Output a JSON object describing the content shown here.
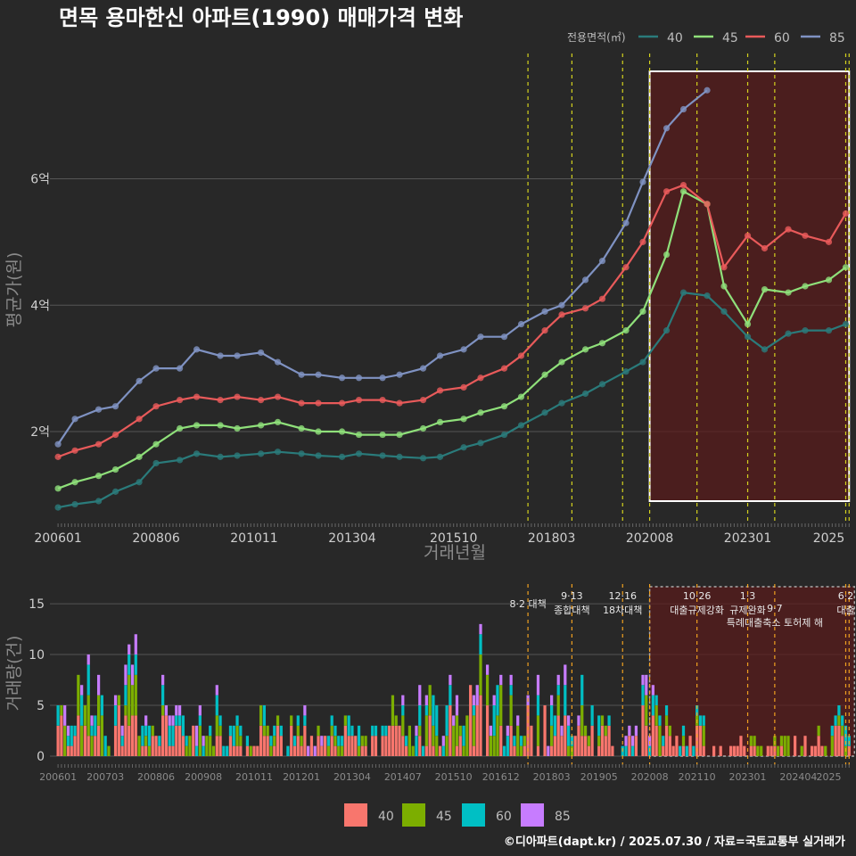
{
  "title": "면목 용마한신 아파트(1990) 매매가격 변화",
  "credit": "©디아파트(dapt.kr) / 2025.07.30 / 자료=국토교통부 실거래가",
  "colors": {
    "price": {
      "40": "#2a7b7b",
      "45": "#8fe07a",
      "60": "#e85a5a",
      "85": "#7f92c2"
    },
    "volume": {
      "40": "#f8766d",
      "45": "#7cae00",
      "60": "#00bfc4",
      "85": "#c77cff"
    },
    "vline": "#d4d21e",
    "vline2": "#f0a020",
    "highlight": "#5a1a1a"
  },
  "chart_data": [
    {
      "type": "line",
      "title": "면목 용마한신 아파트(1990) 매매가격 변화",
      "xlabel": "거래년월",
      "ylabel": "평균가(원)",
      "legend_title": "전용면적(㎡)",
      "legend_position": "top-right",
      "x_ticks": [
        "200601",
        "200806",
        "201011",
        "201304",
        "201510",
        "201803",
        "202008",
        "202301",
        "2025"
      ],
      "y_ticks": [
        "2억",
        "4억",
        "6억"
      ],
      "ylim": [
        0.9,
        7.7
      ],
      "grid": true,
      "policy_lines": [
        "2017.08",
        "2018.09",
        "2019.12",
        "2020.08",
        "2021.10",
        "2023.01",
        "2023.09",
        "2025.06",
        "2025.07"
      ],
      "highlight": [
        "2020.08",
        "2025.07"
      ],
      "series": [
        {
          "name": "40",
          "points": [
            [
              "2006.01",
              0.8
            ],
            [
              "2006.06",
              0.85
            ],
            [
              "2007.01",
              0.9
            ],
            [
              "2007.06",
              1.05
            ],
            [
              "2008.01",
              1.2
            ],
            [
              "2008.06",
              1.5
            ],
            [
              "2009.01",
              1.55
            ],
            [
              "2009.06",
              1.65
            ],
            [
              "2010.01",
              1.6
            ],
            [
              "2010.06",
              1.62
            ],
            [
              "2011.01",
              1.65
            ],
            [
              "2011.06",
              1.68
            ],
            [
              "2012.01",
              1.65
            ],
            [
              "2012.06",
              1.62
            ],
            [
              "2013.01",
              1.6
            ],
            [
              "2013.06",
              1.65
            ],
            [
              "2014.01",
              1.62
            ],
            [
              "2014.06",
              1.6
            ],
            [
              "2015.01",
              1.58
            ],
            [
              "2015.06",
              1.6
            ],
            [
              "2016.01",
              1.75
            ],
            [
              "2016.06",
              1.82
            ],
            [
              "2017.01",
              1.95
            ],
            [
              "2017.06",
              2.1
            ],
            [
              "2018.01",
              2.3
            ],
            [
              "2018.06",
              2.45
            ],
            [
              "2019.01",
              2.6
            ],
            [
              "2019.06",
              2.75
            ],
            [
              "2020.01",
              2.95
            ],
            [
              "2020.06",
              3.1
            ],
            [
              "2021.01",
              3.6
            ],
            [
              "2021.06",
              4.2
            ],
            [
              "2022.01",
              4.15
            ],
            [
              "2022.06",
              3.9
            ],
            [
              "2023.01",
              3.5
            ],
            [
              "2023.06",
              3.3
            ],
            [
              "2024.01",
              3.55
            ],
            [
              "2024.06",
              3.6
            ],
            [
              "2025.01",
              3.6
            ],
            [
              "2025.06",
              3.7
            ]
          ]
        },
        {
          "name": "45",
          "points": [
            [
              "2006.01",
              1.1
            ],
            [
              "2006.06",
              1.2
            ],
            [
              "2007.01",
              1.3
            ],
            [
              "2007.06",
              1.4
            ],
            [
              "2008.01",
              1.6
            ],
            [
              "2008.06",
              1.8
            ],
            [
              "2009.01",
              2.05
            ],
            [
              "2009.06",
              2.1
            ],
            [
              "2010.01",
              2.1
            ],
            [
              "2010.06",
              2.05
            ],
            [
              "2011.01",
              2.1
            ],
            [
              "2011.06",
              2.15
            ],
            [
              "2012.01",
              2.05
            ],
            [
              "2012.06",
              2.0
            ],
            [
              "2013.01",
              2.0
            ],
            [
              "2013.06",
              1.95
            ],
            [
              "2014.01",
              1.95
            ],
            [
              "2014.06",
              1.95
            ],
            [
              "2015.01",
              2.05
            ],
            [
              "2015.06",
              2.15
            ],
            [
              "2016.01",
              2.2
            ],
            [
              "2016.06",
              2.3
            ],
            [
              "2017.01",
              2.4
            ],
            [
              "2017.06",
              2.55
            ],
            [
              "2018.01",
              2.9
            ],
            [
              "2018.06",
              3.1
            ],
            [
              "2019.01",
              3.3
            ],
            [
              "2019.06",
              3.4
            ],
            [
              "2020.01",
              3.6
            ],
            [
              "2020.06",
              3.9
            ],
            [
              "2021.01",
              4.8
            ],
            [
              "2021.06",
              5.8
            ],
            [
              "2022.01",
              5.6
            ],
            [
              "2022.06",
              4.3
            ],
            [
              "2023.01",
              3.7
            ],
            [
              "2023.06",
              4.25
            ],
            [
              "2024.01",
              4.2
            ],
            [
              "2024.06",
              4.3
            ],
            [
              "2025.01",
              4.4
            ],
            [
              "2025.06",
              4.6
            ]
          ]
        },
        {
          "name": "60",
          "points": [
            [
              "2006.01",
              1.6
            ],
            [
              "2006.06",
              1.7
            ],
            [
              "2007.01",
              1.8
            ],
            [
              "2007.06",
              1.95
            ],
            [
              "2008.01",
              2.2
            ],
            [
              "2008.06",
              2.4
            ],
            [
              "2009.01",
              2.5
            ],
            [
              "2009.06",
              2.55
            ],
            [
              "2010.01",
              2.5
            ],
            [
              "2010.06",
              2.55
            ],
            [
              "2011.01",
              2.5
            ],
            [
              "2011.06",
              2.55
            ],
            [
              "2012.01",
              2.45
            ],
            [
              "2012.06",
              2.45
            ],
            [
              "2013.01",
              2.45
            ],
            [
              "2013.06",
              2.5
            ],
            [
              "2014.01",
              2.5
            ],
            [
              "2014.06",
              2.45
            ],
            [
              "2015.01",
              2.5
            ],
            [
              "2015.06",
              2.65
            ],
            [
              "2016.01",
              2.7
            ],
            [
              "2016.06",
              2.85
            ],
            [
              "2017.01",
              3.0
            ],
            [
              "2017.06",
              3.2
            ],
            [
              "2018.01",
              3.6
            ],
            [
              "2018.06",
              3.85
            ],
            [
              "2019.01",
              3.95
            ],
            [
              "2019.06",
              4.1
            ],
            [
              "2020.01",
              4.6
            ],
            [
              "2020.06",
              5.0
            ],
            [
              "2021.01",
              5.8
            ],
            [
              "2021.06",
              5.9
            ],
            [
              "2022.01",
              5.6
            ],
            [
              "2022.06",
              4.6
            ],
            [
              "2023.01",
              5.1
            ],
            [
              "2023.06",
              4.9
            ],
            [
              "2024.01",
              5.2
            ],
            [
              "2024.06",
              5.1
            ],
            [
              "2025.01",
              5.0
            ],
            [
              "2025.06",
              5.45
            ]
          ]
        },
        {
          "name": "85",
          "points": [
            [
              "2006.01",
              1.8
            ],
            [
              "2006.06",
              2.2
            ],
            [
              "2007.01",
              2.35
            ],
            [
              "2007.06",
              2.4
            ],
            [
              "2008.01",
              2.8
            ],
            [
              "2008.06",
              3.0
            ],
            [
              "2009.01",
              3.0
            ],
            [
              "2009.06",
              3.3
            ],
            [
              "2010.01",
              3.2
            ],
            [
              "2010.06",
              3.2
            ],
            [
              "2011.01",
              3.25
            ],
            [
              "2011.06",
              3.1
            ],
            [
              "2012.01",
              2.9
            ],
            [
              "2012.06",
              2.9
            ],
            [
              "2013.01",
              2.85
            ],
            [
              "2013.06",
              2.85
            ],
            [
              "2014.01",
              2.85
            ],
            [
              "2014.06",
              2.9
            ],
            [
              "2015.01",
              3.0
            ],
            [
              "2015.06",
              3.2
            ],
            [
              "2016.01",
              3.3
            ],
            [
              "2016.06",
              3.5
            ],
            [
              "2017.01",
              3.5
            ],
            [
              "2017.06",
              3.7
            ],
            [
              "2018.01",
              3.9
            ],
            [
              "2018.06",
              4.0
            ],
            [
              "2019.01",
              4.4
            ],
            [
              "2019.06",
              4.7
            ],
            [
              "2020.01",
              5.3
            ],
            [
              "2020.06",
              5.95
            ],
            [
              "2021.01",
              6.8
            ],
            [
              "2021.06",
              7.1
            ],
            [
              "2022.01",
              7.4
            ]
          ]
        }
      ]
    },
    {
      "type": "bar",
      "stacked": true,
      "xlabel": "",
      "ylabel": "거래량(건)",
      "x_ticks": [
        "200601",
        "200703",
        "200806",
        "200908",
        "201011",
        "201201",
        "201304",
        "201407",
        "201510",
        "201612",
        "201803",
        "201905",
        "202008",
        "202110",
        "202301",
        "202404",
        "2025"
      ],
      "y_ticks": [
        "0",
        "5",
        "10",
        "15"
      ],
      "ylim": [
        0,
        16.5
      ],
      "legend": [
        "40",
        "45",
        "60",
        "85"
      ],
      "legend_position": "bottom",
      "annotations": [
        {
          "date": "2017.08",
          "lines": [
            "8·2 대책"
          ]
        },
        {
          "date": "2018.09",
          "lines": [
            "9·13",
            "종합대책"
          ]
        },
        {
          "date": "2019.12",
          "lines": [
            "12·16",
            "18차대책"
          ]
        },
        {
          "date": "2021.10",
          "lines": [
            "10·26",
            "대출규제강화"
          ]
        },
        {
          "date": "2023.01",
          "lines": [
            "1·3",
            "규제완화"
          ]
        },
        {
          "date": "2023.09",
          "lines": [
            "9·7",
            "특례대출축소 토허제 해"
          ]
        },
        {
          "date": "2025.06",
          "lines": [
            "6·2",
            "대출"
          ]
        }
      ],
      "yearly_totals": {
        "2006": {
          "40": 4,
          "45": 3,
          "60": 2,
          "85": 1
        },
        "2007": {
          "40": 4,
          "45": 3,
          "60": 2,
          "85": 1
        },
        "2008": {
          "40": 3,
          "45": 2,
          "60": 1,
          "85": 1
        },
        "2009": {
          "40": 3,
          "45": 2,
          "60": 1,
          "85": 1
        },
        "2010": {
          "40": 2,
          "45": 1,
          "60": 1,
          "85": 0
        },
        "2011": {
          "40": 2,
          "45": 1,
          "60": 1,
          "85": 0
        },
        "2012": {
          "40": 2,
          "45": 1,
          "60": 1,
          "85": 1
        },
        "2013": {
          "40": 2,
          "45": 1,
          "60": 1,
          "85": 0
        },
        "2014": {
          "40": 2,
          "45": 2,
          "60": 1,
          "85": 1
        },
        "2015": {
          "40": 3,
          "45": 2,
          "60": 2,
          "85": 1
        },
        "2016": {
          "40": 4,
          "45": 3,
          "60": 2,
          "85": 1
        },
        "2017": {
          "40": 3,
          "45": 2,
          "60": 1,
          "85": 1
        },
        "2018": {
          "40": 3,
          "45": 2,
          "60": 2,
          "85": 1
        },
        "2019": {
          "40": 2,
          "45": 1,
          "60": 1,
          "85": 0
        },
        "2020": {
          "40": 3,
          "45": 2,
          "60": 1,
          "85": 1
        },
        "2021": {
          "40": 2,
          "45": 1,
          "60": 1,
          "85": 0
        },
        "2022": {
          "40": 1,
          "45": 0,
          "60": 0,
          "85": 0
        },
        "2023": {
          "40": 1,
          "45": 1,
          "60": 0,
          "85": 0
        },
        "2024": {
          "40": 1,
          "45": 1,
          "60": 0,
          "85": 0
        },
        "2025": {
          "40": 2,
          "45": 1,
          "60": 1,
          "85": 0
        }
      }
    }
  ]
}
